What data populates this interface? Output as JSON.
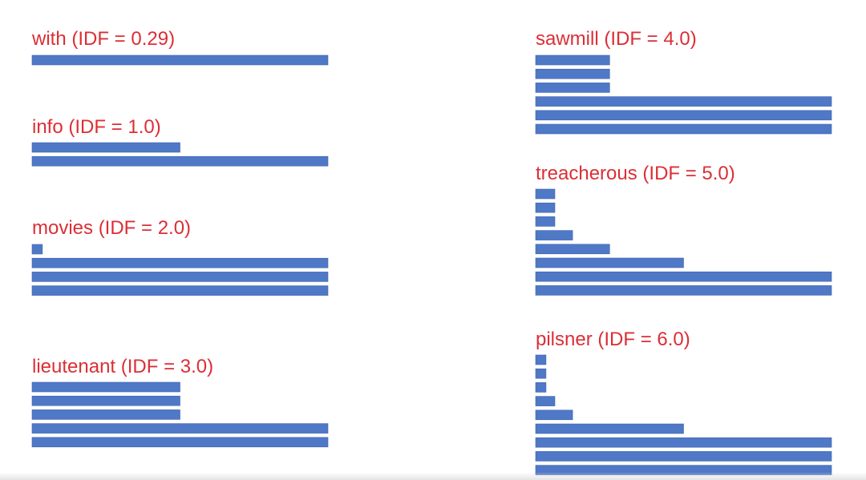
{
  "colors": {
    "label": "#dc2e36",
    "bar": "#4f78c6",
    "bar_edge": "#3f64ad"
  },
  "chart_data": [
    {
      "type": "bar",
      "title": "with (IDF = 0.29)",
      "xlim": [
        0,
        1
      ],
      "values": [
        1.0
      ]
    },
    {
      "type": "bar",
      "title": "info (IDF = 1.0)",
      "xlim": [
        0,
        1
      ],
      "values": [
        0.5,
        1.0
      ]
    },
    {
      "type": "bar",
      "title": "movies (IDF = 2.0)",
      "xlim": [
        0,
        1
      ],
      "values": [
        0.035,
        1.0,
        1.0,
        1.0
      ]
    },
    {
      "type": "bar",
      "title": "lieutenant (IDF = 3.0)",
      "xlim": [
        0,
        1
      ],
      "values": [
        0.5,
        0.5,
        0.5,
        1.0,
        1.0
      ]
    },
    {
      "type": "bar",
      "title": "sawmill (IDF = 4.0)",
      "xlim": [
        0,
        1
      ],
      "values": [
        0.25,
        0.25,
        0.25,
        1.0,
        1.0,
        1.0
      ]
    },
    {
      "type": "bar",
      "title": "treacherous (IDF = 5.0)",
      "xlim": [
        0,
        1
      ],
      "values": [
        0.065,
        0.065,
        0.065,
        0.125,
        0.25,
        0.5,
        1.0,
        1.0
      ]
    },
    {
      "type": "bar",
      "title": "pilsner (IDF = 6.0)",
      "xlim": [
        0,
        1
      ],
      "values": [
        0.035,
        0.035,
        0.035,
        0.065,
        0.125,
        0.5,
        1.0,
        1.0,
        1.0
      ]
    }
  ]
}
